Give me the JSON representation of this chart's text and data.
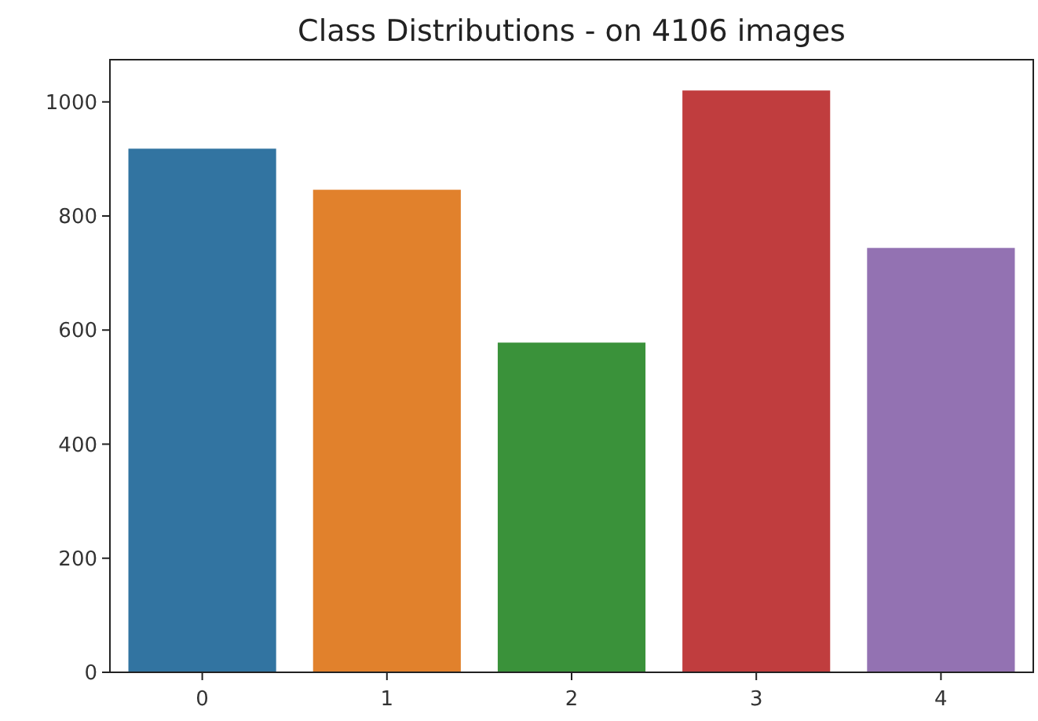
{
  "chart_data": {
    "type": "bar",
    "title": "Class Distributions - on 4106 images",
    "categories": [
      "0",
      "1",
      "2",
      "3",
      "4"
    ],
    "values": [
      918,
      846,
      578,
      1020,
      744
    ],
    "colors": [
      "#3274a1",
      "#e1812c",
      "#3a923a",
      "#c03d3e",
      "#9372b2"
    ],
    "ylim": [
      0,
      1074
    ],
    "yticks": [
      0,
      200,
      400,
      600,
      800,
      1000
    ],
    "grid": false
  }
}
